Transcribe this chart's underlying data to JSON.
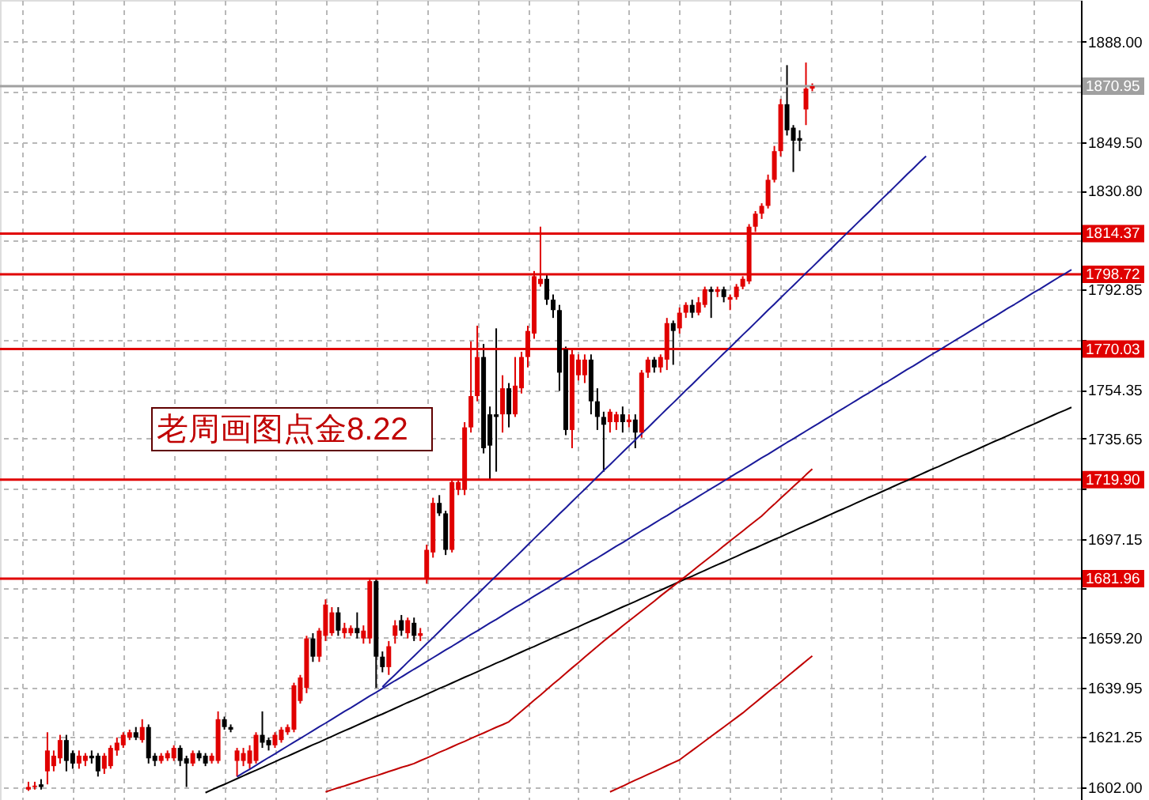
{
  "chart_data": {
    "type": "candlestick",
    "categories": [
      null,
      null,
      null,
      null,
      null,
      null,
      null,
      null,
      null,
      null,
      null,
      null,
      null,
      null,
      null,
      null,
      null,
      null,
      null,
      null,
      null,
      null,
      null,
      null,
      null,
      null,
      null,
      null,
      null,
      null,
      null,
      null,
      null,
      null,
      null,
      null,
      null,
      null,
      null,
      null,
      null,
      null,
      null,
      null,
      null,
      null,
      null,
      null,
      null,
      null,
      null,
      null,
      null,
      null,
      null,
      null,
      null,
      null,
      null,
      null,
      null,
      null,
      null,
      null,
      null,
      null,
      null,
      null,
      null,
      null,
      null,
      null,
      null,
      null,
      null,
      null,
      null,
      null,
      null,
      null,
      null,
      null,
      null,
      null,
      null,
      null,
      null,
      null,
      null,
      null,
      null,
      null,
      null,
      null,
      null,
      null,
      null,
      null,
      null,
      null,
      null,
      null,
      null,
      null,
      null,
      null,
      null,
      null,
      null,
      null,
      null,
      null,
      null,
      null,
      null,
      null,
      null,
      null,
      null,
      null,
      null,
      null,
      null,
      null,
      null,
      null,
      null,
      null,
      null,
      null,
      null,
      null,
      null,
      null,
      null,
      null,
      null,
      null,
      null,
      null,
      null,
      null,
      null,
      null,
      null,
      null,
      null,
      null,
      null,
      null,
      null,
      null,
      null,
      null,
      null,
      null,
      null,
      null,
      null,
      null,
      null,
      null,
      null,
      null,
      null,
      null,
      null,
      null,
      null,
      null,
      null
    ],
    "ohlc": [
      null,
      null,
      null,
      null,
      [
        1601,
        1604,
        1600.5,
        1602
      ],
      [
        1602,
        1604,
        1601,
        1602.5
      ],
      [
        1603,
        1605,
        1601,
        1602
      ],
      [
        1608,
        1623,
        1603,
        1616
      ],
      [
        1610,
        1616,
        1608,
        1614
      ],
      [
        1613,
        1622,
        1611,
        1620
      ],
      [
        1620,
        1622,
        1608,
        1612
      ],
      [
        1615,
        1616,
        1609,
        1611
      ],
      [
        1611,
        1616,
        1609,
        1614
      ],
      [
        1612,
        1615,
        1610,
        1614
      ],
      [
        1614,
        1616,
        1611,
        1613
      ],
      [
        1614,
        1615,
        1606,
        1608
      ],
      [
        1609,
        1615,
        1607,
        1614
      ],
      [
        1610,
        1618,
        1609,
        1617
      ],
      [
        1616,
        1621,
        1614,
        1619
      ],
      [
        1618,
        1623,
        1617,
        1622
      ],
      [
        1621,
        1624,
        1620,
        1623
      ],
      [
        1623,
        1625,
        1620,
        1621
      ],
      [
        1620,
        1628,
        1619,
        1625
      ],
      [
        1625,
        1626,
        1611,
        1613
      ],
      [
        1614,
        1615,
        1610,
        1612
      ],
      [
        1612,
        1615,
        1611,
        1614
      ],
      [
        1613,
        1616,
        1612,
        1615
      ],
      [
        1613,
        1618,
        1612,
        1617
      ],
      [
        1617,
        1618,
        1610,
        1612
      ],
      [
        1613,
        1614,
        1602,
        1611
      ],
      [
        1611,
        1616,
        1610,
        1615
      ],
      [
        1615,
        1616,
        1612,
        1613
      ],
      [
        1614,
        1615,
        1610,
        1611
      ],
      [
        1612,
        1615,
        1611,
        1614
      ],
      [
        1612,
        1631,
        1611,
        1628
      ],
      [
        1628,
        1629,
        1624,
        1625
      ],
      [
        1625,
        1626,
        1623,
        1624
      ],
      [
        1612,
        1617,
        1606,
        1616
      ],
      [
        1612,
        1617,
        1610,
        1615
      ],
      [
        1611,
        1618,
        1609,
        1616
      ],
      [
        1612,
        1623,
        1611,
        1622
      ],
      [
        1622,
        1631,
        1617,
        1619
      ],
      [
        1620,
        1621,
        1616,
        1618
      ],
      [
        1618,
        1623,
        1617,
        1622
      ],
      [
        1620,
        1625,
        1619,
        1624
      ],
      [
        1623,
        1626,
        1622,
        1625
      ],
      [
        1624,
        1642,
        1623,
        1641
      ],
      [
        1635,
        1645,
        1634,
        1644
      ],
      [
        1640,
        1660,
        1638,
        1659
      ],
      [
        1659,
        1661,
        1650,
        1652
      ],
      [
        1652,
        1663,
        1650,
        1662
      ],
      [
        1660,
        1674,
        1658,
        1672
      ],
      [
        1661,
        1671,
        1660,
        1669
      ],
      [
        1669,
        1671,
        1660,
        1662
      ],
      [
        1661,
        1665,
        1659,
        1663
      ],
      [
        1661,
        1664,
        1660,
        1663
      ],
      [
        1663,
        1669,
        1659,
        1661
      ],
      [
        1659,
        1664,
        1657,
        1662
      ],
      [
        1659,
        1681.9,
        1657,
        1681
      ],
      [
        1681,
        1681.9,
        1640,
        1652
      ],
      [
        1652,
        1654,
        1646,
        1648
      ],
      [
        1648,
        1658,
        1645,
        1656
      ],
      [
        1660,
        1666,
        1657,
        1664
      ],
      [
        1666,
        1668,
        1660,
        1662
      ],
      [
        1661,
        1667,
        1659,
        1666
      ],
      [
        1665,
        1667,
        1658,
        1660
      ],
      [
        1660,
        1663,
        1658,
        1661
      ],
      [
        1682,
        1695,
        1680,
        1693
      ],
      [
        1692,
        1713,
        1690,
        1711
      ],
      [
        1711,
        1714,
        1706,
        1707
      ],
      [
        1707,
        1708,
        1691,
        1693
      ],
      [
        1693,
        1720,
        1692,
        1719
      ],
      [
        1716,
        1720,
        1714,
        1719
      ],
      [
        1716,
        1742,
        1714,
        1740
      ],
      [
        1740,
        1773,
        1738,
        1752
      ],
      [
        1752,
        1779,
        1750,
        1767
      ],
      [
        1767,
        1772,
        1730,
        1732
      ],
      [
        1745,
        1748,
        1720,
        1733
      ],
      [
        1745,
        1778,
        1723,
        1744
      ],
      [
        1745,
        1760,
        1738,
        1755
      ],
      [
        1755,
        1757,
        1740,
        1745
      ],
      [
        1745,
        1767,
        1744,
        1756
      ],
      [
        1755,
        1769,
        1753,
        1767
      ],
      [
        1767,
        1779,
        1763,
        1777
      ],
      [
        1776,
        1800,
        1774,
        1798
      ],
      [
        1795,
        1817,
        1794,
        1797
      ],
      [
        1797,
        1799,
        1787,
        1789
      ],
      [
        1789,
        1791,
        1782,
        1785
      ],
      [
        1785,
        1787,
        1754,
        1761
      ],
      [
        1770,
        1771,
        1737,
        1739
      ],
      [
        1739,
        1770,
        1732,
        1768
      ],
      [
        1760,
        1768,
        1758,
        1766
      ],
      [
        1760,
        1768,
        1757,
        1766
      ],
      [
        1766,
        1768,
        1745,
        1750
      ],
      [
        1750,
        1755,
        1739,
        1744
      ],
      [
        1744,
        1746,
        1723,
        1741
      ],
      [
        1742,
        1747,
        1738,
        1746
      ],
      [
        1742,
        1746,
        1739,
        1745
      ],
      [
        1745,
        1748,
        1738,
        1742
      ],
      [
        1742,
        1745,
        1740,
        1743
      ],
      [
        1743,
        1745,
        1732,
        1738
      ],
      [
        1738,
        1762,
        1736,
        1761
      ],
      [
        1761,
        1767,
        1759,
        1766
      ],
      [
        1766,
        1767,
        1761,
        1763
      ],
      [
        1763,
        1768,
        1761,
        1767
      ],
      [
        1766,
        1782,
        1762,
        1780
      ],
      [
        1780,
        1781,
        1764,
        1777
      ],
      [
        1778,
        1786,
        1776,
        1784
      ],
      [
        1784,
        1788,
        1782,
        1787
      ],
      [
        1787,
        1789,
        1782,
        1784
      ],
      [
        1784,
        1790,
        1783,
        1788
      ],
      [
        1787,
        1794,
        1786,
        1793
      ],
      [
        1793,
        1794,
        1782,
        1792
      ],
      [
        1792,
        1794,
        1790,
        1793
      ],
      [
        1793,
        1794,
        1788,
        1790
      ],
      [
        1789,
        1791,
        1785,
        1790
      ],
      [
        1790,
        1795,
        1789,
        1794
      ],
      [
        1794,
        1798,
        1793,
        1797
      ],
      [
        1796,
        1818,
        1795,
        1817
      ],
      [
        1817,
        1823,
        1815,
        1822
      ],
      [
        1822,
        1826,
        1820,
        1825
      ],
      [
        1825,
        1837,
        1824,
        1835
      ],
      [
        1835,
        1848,
        1834,
        1846
      ],
      [
        1846,
        1866,
        1844,
        1864
      ],
      [
        1864,
        1879,
        1852,
        1854
      ],
      [
        1855,
        1856,
        1838,
        1850
      ],
      [
        1851,
        1854,
        1846,
        1850
      ],
      [
        1862,
        1880,
        1856,
        1870
      ],
      [
        1870,
        1872,
        1869,
        1870.95
      ],
      null,
      null,
      null,
      null,
      null,
      null,
      null,
      null,
      null,
      null,
      null,
      null,
      null,
      null,
      null,
      null,
      null,
      null,
      null,
      null,
      null,
      null,
      null,
      null,
      null,
      null,
      null,
      null,
      null,
      null,
      null,
      null,
      null,
      null,
      null,
      null,
      null,
      null,
      null,
      null,
      null,
      null
    ],
    "colors": [
      null,
      null,
      null,
      null,
      "#e00000",
      "#e00000",
      "#000000",
      "#e00000",
      "#e00000",
      "#e00000",
      "#000000",
      "#000000",
      "#e00000",
      "#e00000",
      "#000000",
      "#000000",
      "#e00000",
      "#e00000",
      "#e00000",
      "#e00000",
      "#e00000",
      "#000000",
      "#e00000",
      "#000000",
      "#000000",
      "#e00000",
      "#e00000",
      "#e00000",
      "#000000",
      "#000000",
      "#e00000",
      "#000000",
      "#000000",
      "#e00000",
      "#e00000",
      "#000000",
      "#000000",
      "#e00000",
      "#e00000",
      "#e00000",
      "#e00000",
      "#000000",
      "#000000",
      "#e00000",
      "#e00000",
      "#e00000",
      "#e00000",
      "#e00000",
      "#e00000",
      "#000000",
      "#e00000",
      "#e00000",
      "#e00000",
      "#000000",
      "#e00000",
      "#e00000",
      "#000000",
      "#e00000",
      "#e00000",
      "#000000",
      "#000000",
      "#e00000",
      "#e00000",
      "#000000",
      "#e00000",
      "#000000",
      "#e00000",
      "#e00000",
      "#e00000",
      "#000000",
      "#000000",
      "#e00000",
      "#e00000",
      "#e00000",
      "#e00000",
      "#e00000",
      "#000000",
      "#000000",
      "#000000",
      "#e00000",
      "#000000",
      "#e00000",
      "#e00000",
      "#e00000",
      "#e00000",
      "#e00000",
      "#000000",
      "#000000",
      "#000000",
      "#000000",
      "#e00000",
      "#e00000",
      "#e00000",
      "#000000",
      "#000000",
      "#000000",
      "#e00000",
      "#e00000",
      "#000000",
      "#e00000",
      "#000000",
      "#e00000",
      "#e00000",
      "#000000",
      "#e00000",
      "#e00000",
      "#000000",
      "#e00000",
      "#e00000",
      "#000000",
      "#e00000",
      "#e00000",
      "#000000",
      "#e00000",
      "#000000",
      "#e00000",
      "#e00000",
      "#e00000",
      "#e00000",
      "#e00000",
      "#e00000",
      "#e00000",
      "#e00000",
      "#e00000",
      "#000000",
      "#000000",
      "#000000",
      "#e00000",
      "#e00000",
      null,
      null,
      null,
      null,
      null,
      null,
      null,
      null,
      null,
      null,
      null,
      null,
      null,
      null,
      null,
      null,
      null,
      null,
      null,
      null,
      null,
      null,
      null,
      null,
      null,
      null,
      null,
      null,
      null,
      null,
      null,
      null,
      null,
      null,
      null,
      null,
      null,
      null,
      null,
      null,
      null,
      null
    ],
    "series": [
      {
        "type": "line",
        "color": "#1a1a9a",
        "values": [
          null,
          null,
          null,
          null,
          null,
          null,
          null,
          null,
          null,
          null,
          null,
          null,
          null,
          null,
          null,
          null,
          null,
          null,
          null,
          null,
          null,
          null,
          null,
          null,
          null,
          null,
          null,
          null,
          null,
          null,
          null,
          null,
          null,
          null,
          null,
          null,
          null,
          null,
          null,
          null,
          null,
          null,
          null,
          null,
          null,
          null,
          null,
          null,
          null,
          null,
          null,
          null,
          null,
          null,
          null,
          null,
          null,
          null,
          null,
          null,
          1640.4,
          1642.8,
          1645.1,
          1647.5,
          1649.9,
          1652.2,
          1654.6,
          1657.0,
          1659.3,
          1661.7,
          1664.1,
          1666.5,
          1668.8,
          1671.2,
          1673.6,
          1675.9,
          1678.3,
          1680.7,
          1683.0,
          1685.4,
          1687.8,
          1690.1,
          1692.5,
          1694.9,
          1697.3,
          1699.7,
          1702.0,
          1704.4,
          1706.8,
          1709.1,
          1711.5,
          1713.9,
          1716.2,
          1718.6,
          1721.0,
          1723.4,
          1725.7,
          1728.1,
          1730.5,
          1732.8,
          1735.2,
          1737.6,
          1739.9,
          1742.3,
          1744.7,
          1747.1,
          1749.4,
          1751.8,
          1754.2,
          1756.5,
          1758.9,
          1761.3,
          1763.6,
          1766.0,
          1768.4,
          1770.7,
          1773.1,
          1775.5,
          1777.8,
          1780.2,
          1782.6,
          1785.0,
          1787.3,
          1789.7,
          1792.1,
          1794.4,
          1796.8,
          1799.2,
          1801.5,
          1803.9,
          1806.3,
          1808.6,
          1811.0,
          1813.4,
          1815.7,
          1818.1,
          1820.5,
          1822.8,
          1825.2,
          1827.6,
          1829.9,
          1832.3,
          1834.7,
          1837.1,
          1839.4,
          1841.8,
          1844.1,
          null,
          null,
          null,
          null,
          null,
          null,
          null,
          null,
          null,
          null,
          null,
          null,
          null,
          null,
          null,
          null,
          null,
          null,
          null,
          null,
          null,
          null,
          null,
          null
        ]
      },
      {
        "type": "line",
        "color": "#1a1a9a",
        "values": [
          null,
          null,
          null,
          null,
          null,
          null,
          null,
          null,
          null,
          null,
          null,
          null,
          null,
          null,
          null,
          null,
          null,
          null,
          null,
          null,
          null,
          null,
          null,
          null,
          null,
          null,
          null,
          null,
          null,
          null,
          null,
          null,
          null,
          null,
          null,
          null,
          null,
          1605.9,
          1607.4,
          1608.8,
          1610.3,
          1611.8,
          1613.3,
          1614.7,
          1616.2,
          1617.7,
          1619.2,
          1620.6,
          1622.1,
          1623.6,
          1625.1,
          1626.5,
          1628.0,
          1629.5,
          1631.0,
          1632.4,
          1633.9,
          1635.4,
          1636.9,
          1638.3,
          1639.8,
          1641.3,
          1642.8,
          1644.2,
          1645.7,
          1647.2,
          1648.6,
          1650.1,
          1651.6,
          1653.1,
          1654.6,
          1656.0,
          1657.5,
          1659.0,
          1660.5,
          1661.9,
          1663.4,
          1664.9,
          1666.3,
          1667.8,
          1669.3,
          1670.8,
          1672.2,
          1673.7,
          1675.2,
          1676.7,
          1678.1,
          1679.6,
          1681.1,
          1682.6,
          1684.0,
          1685.5,
          1687.0,
          1688.5,
          1689.9,
          1691.4,
          1692.9,
          1694.4,
          1695.8,
          1697.3,
          1698.8,
          1700.3,
          1701.7,
          1703.2,
          1704.7,
          1706.1,
          1707.6,
          1709.1,
          1710.6,
          1712.0,
          1713.5,
          1715.0,
          1716.5,
          1717.9,
          1719.4,
          1720.9,
          1722.4,
          1723.8,
          1725.3,
          1726.8,
          1728.3,
          1729.7,
          1731.2,
          1732.7,
          1734.2,
          1735.6,
          1737.1,
          1738.6,
          1740.1,
          1741.5,
          1743.0,
          1744.5,
          1746.0,
          1747.4,
          1748.9,
          1750.4,
          1751.9,
          1753.3,
          1754.8,
          1756.3,
          1757.7,
          1759.2,
          1760.7,
          1762.2,
          1763.6,
          1765.1,
          1766.6,
          1768.1,
          1769.5,
          1771.0,
          1772.5,
          1774.0,
          1775.4,
          1776.9,
          1778.4,
          1779.9,
          1781.3,
          1782.8,
          1784.3,
          1785.8,
          1787.2,
          1788.7,
          1790.2,
          1791.7,
          1793.1,
          1794.6,
          1796.1,
          1797.6,
          1799.0,
          1800.5,
          null
        ]
      },
      {
        "type": "line",
        "color": "#000000",
        "values": [
          null,
          null,
          null,
          null,
          null,
          null,
          null,
          null,
          null,
          null,
          null,
          null,
          null,
          null,
          null,
          null,
          null,
          null,
          null,
          null,
          null,
          null,
          null,
          null,
          null,
          null,
          null,
          null,
          null,
          null,
          null,
          null,
          1599.8,
          1600.9,
          1602.0,
          1603.0,
          1604.1,
          1605.2,
          1606.3,
          1607.4,
          1608.4,
          1609.5,
          1610.6,
          1611.7,
          1612.8,
          1613.8,
          1614.9,
          1616.0,
          1617.1,
          1618.2,
          1619.2,
          1620.3,
          1621.4,
          1622.5,
          1623.6,
          1624.6,
          1625.7,
          1626.8,
          1627.9,
          1629.0,
          1630.0,
          1631.1,
          1632.2,
          1633.3,
          1634.4,
          1635.4,
          1636.5,
          1637.6,
          1638.7,
          1639.8,
          1640.8,
          1641.9,
          1643.0,
          1644.1,
          1645.1,
          1646.2,
          1647.3,
          1648.4,
          1649.5,
          1650.5,
          1651.6,
          1652.7,
          1653.8,
          1654.9,
          1655.9,
          1657.0,
          1658.1,
          1659.2,
          1660.3,
          1661.3,
          1662.4,
          1663.5,
          1664.6,
          1665.7,
          1666.7,
          1667.8,
          1668.9,
          1670.0,
          1671.1,
          1672.1,
          1673.2,
          1674.3,
          1675.4,
          1676.5,
          1677.5,
          1678.6,
          1679.7,
          1680.8,
          1681.9,
          1682.9,
          1684.0,
          1685.1,
          1686.2,
          1687.3,
          1688.3,
          1689.4,
          1690.5,
          1691.6,
          1692.7,
          1693.7,
          1694.8,
          1695.9,
          1697.0,
          1698.0,
          1699.1,
          1700.2,
          1701.3,
          1702.4,
          1703.4,
          1704.5,
          1705.6,
          1706.7,
          1707.8,
          1708.8,
          1709.9,
          1711.0,
          1712.1,
          1713.2,
          1714.2,
          1715.3,
          1716.4,
          1717.5,
          1718.6,
          1719.6,
          1720.7,
          1721.8,
          1722.9,
          1724.0,
          1725.0,
          1726.1,
          1727.2,
          1728.3,
          1729.4,
          1730.4,
          1731.5,
          1732.6,
          1733.7,
          1734.8,
          1735.8,
          1736.9,
          1738.0,
          1739.1,
          1740.2,
          1741.2,
          1742.3,
          1743.4,
          1744.5,
          1745.6,
          1746.6,
          1747.7,
          null
        ]
      },
      {
        "type": "line",
        "color": "#c00000",
        "values": [
          null,
          null,
          null,
          null,
          null,
          null,
          null,
          null,
          null,
          null,
          null,
          null,
          null,
          null,
          null,
          null,
          null,
          null,
          null,
          null,
          null,
          null,
          null,
          null,
          null,
          null,
          null,
          null,
          null,
          null,
          null,
          null,
          null,
          null,
          null,
          null,
          null,
          null,
          null,
          null,
          null,
          null,
          null,
          null,
          null,
          null,
          null,
          null,
          null,
          null,
          null,
          1600.1,
          1600.9,
          1601.7,
          1602.4,
          1603.2,
          1604.0,
          1604.8,
          1605.6,
          1606.3,
          1607.1,
          1607.9,
          1608.7,
          1609.5,
          1610.2,
          1611.0,
          1612.1,
          1613.1,
          1614.2,
          1615.3,
          1616.3,
          1617.4,
          1618.5,
          1619.5,
          1620.6,
          1621.7,
          1622.7,
          1623.8,
          1624.9,
          1625.9,
          1627.0,
          1629.1,
          1631.1,
          1633.2,
          1635.3,
          1637.3,
          1639.4,
          1641.5,
          1643.5,
          1645.6,
          1647.7,
          1649.7,
          1651.8,
          1653.9,
          1655.9,
          1658.0,
          1659.9,
          1661.8,
          1663.8,
          1665.7,
          1667.6,
          1669.5,
          1671.4,
          1673.3,
          1675.3,
          1677.2,
          1679.1,
          1681.0,
          1682.9,
          1684.8,
          1686.8,
          1688.7,
          1690.6,
          1692.5,
          1694.5,
          1696.4,
          1698.3,
          1700.2,
          1702.2,
          1704.1,
          1706.0,
          1708.3,
          1710.5,
          1712.8,
          1715.0,
          1717.3,
          1719.5,
          1721.8,
          1724.0,
          null,
          null,
          null,
          null,
          null,
          null,
          null,
          null,
          null,
          null,
          null,
          null,
          null,
          null,
          null,
          null,
          null,
          null,
          null,
          null,
          null,
          null,
          null,
          null,
          null,
          null,
          null,
          null,
          null,
          null,
          null,
          null,
          null,
          null,
          null,
          null,
          null,
          null,
          null,
          null,
          null,
          null
        ]
      },
      {
        "type": "line",
        "color": "#c00000",
        "values": [
          null,
          null,
          null,
          null,
          null,
          null,
          null,
          null,
          null,
          null,
          null,
          null,
          null,
          null,
          null,
          null,
          null,
          null,
          null,
          null,
          null,
          null,
          null,
          null,
          null,
          null,
          null,
          null,
          null,
          null,
          null,
          null,
          null,
          null,
          null,
          null,
          null,
          null,
          null,
          null,
          null,
          null,
          null,
          null,
          null,
          null,
          null,
          null,
          null,
          null,
          null,
          null,
          null,
          null,
          null,
          null,
          null,
          null,
          null,
          null,
          null,
          null,
          null,
          null,
          null,
          null,
          null,
          null,
          null,
          null,
          null,
          null,
          null,
          null,
          null,
          null,
          null,
          null,
          null,
          null,
          null,
          null,
          null,
          null,
          null,
          null,
          null,
          null,
          null,
          null,
          null,
          null,
          null,
          null,
          null,
          null,
          1600.1,
          1601.2,
          1602.3,
          1603.5,
          1604.6,
          1605.7,
          1606.8,
          1607.9,
          1609.0,
          1610.2,
          1611.3,
          1612.4,
          1614.2,
          1616.0,
          1617.8,
          1619.6,
          1621.4,
          1623.2,
          1625.0,
          1626.8,
          1628.6,
          1630.4,
          1632.4,
          1634.4,
          1636.4,
          1638.4,
          1640.4,
          1642.3,
          1644.3,
          1646.3,
          1648.3,
          1650.3,
          1652.3,
          null,
          null,
          null,
          null,
          null,
          null,
          null,
          null,
          null,
          null,
          null,
          null,
          null,
          null,
          null,
          null,
          null,
          null,
          null,
          null,
          null,
          null,
          null,
          null,
          null,
          null,
          null,
          null,
          null,
          null,
          null,
          null,
          null,
          null,
          null,
          null,
          null,
          null,
          null,
          null,
          null,
          null
        ]
      }
    ],
    "ylim": [
      1597,
      1904
    ],
    "yticks": [
      {
        "value": 1888.0,
        "label": "1888.00"
      },
      {
        "value": 1868.75,
        "label": null
      },
      {
        "value": 1849.5,
        "label": "1849.50"
      },
      {
        "value": 1830.8,
        "label": "1830.80"
      },
      {
        "value": 1811.55,
        "label": null
      },
      {
        "value": 1792.85,
        "label": "1792.85"
      },
      {
        "value": 1773.6,
        "label": null
      },
      {
        "value": 1754.35,
        "label": "1754.35"
      },
      {
        "value": 1735.65,
        "label": "1735.65"
      },
      {
        "value": 1716.4,
        "label": null
      },
      {
        "value": 1697.15,
        "label": "1697.15"
      },
      {
        "value": 1678.45,
        "label": null
      },
      {
        "value": 1659.2,
        "label": "1659.20"
      },
      {
        "value": 1639.95,
        "label": "1639.95"
      },
      {
        "value": 1621.25,
        "label": "1621.25"
      },
      {
        "value": 1602.0,
        "label": "1602.00"
      }
    ],
    "ref_lines": [
      {
        "axis": "y",
        "value": 1870.95,
        "label": "1870.95",
        "color": "#a0a0a0"
      },
      {
        "axis": "y",
        "value": 1814.37,
        "label": "1814.37",
        "color": "#e00000"
      },
      {
        "axis": "y",
        "value": 1798.72,
        "label": "1798.72",
        "color": "#e00000"
      },
      {
        "axis": "y",
        "value": 1770.03,
        "label": "1770.03",
        "color": "#e00000"
      },
      {
        "axis": "y",
        "value": 1719.9,
        "label": "1719.90",
        "color": "#e00000"
      },
      {
        "axis": "y",
        "value": 1681.96,
        "label": "1681.96",
        "color": "#e00000"
      }
    ],
    "annotations": [
      "老周画图点金8.22"
    ],
    "grid": true,
    "tick_labels": "y",
    "marker": "none",
    "line_style": "solid"
  }
}
